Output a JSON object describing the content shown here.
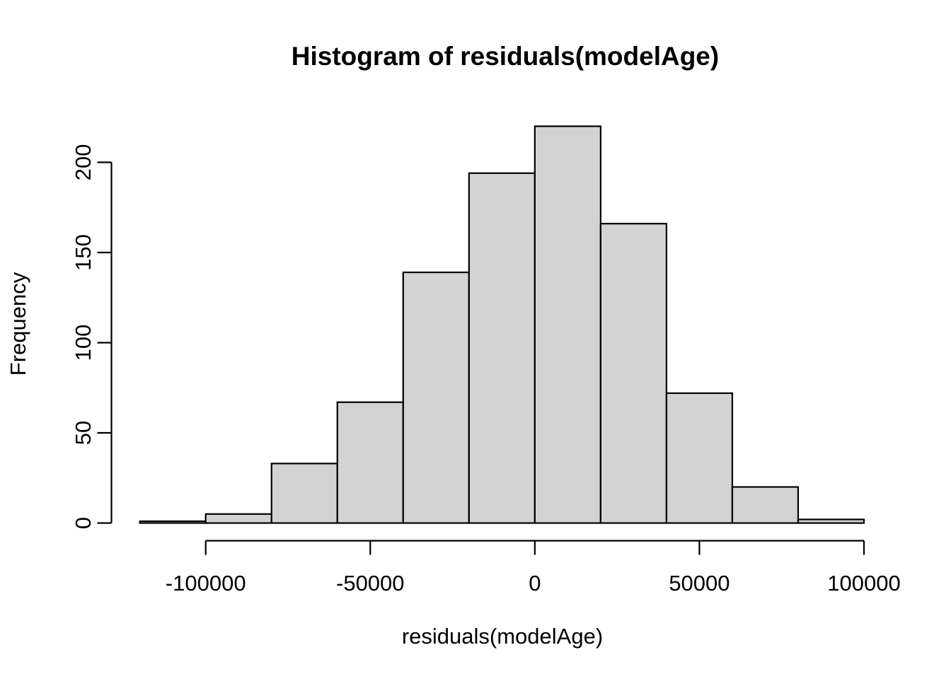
{
  "chart_data": {
    "type": "histogram",
    "title": "Histogram of residuals(modelAge)",
    "xlabel": "residuals(modelAge)",
    "ylabel": "Frequency",
    "bin_width": 20000,
    "bins": [
      {
        "start": -120000,
        "end": -100000,
        "count": 1
      },
      {
        "start": -100000,
        "end": -80000,
        "count": 5
      },
      {
        "start": -80000,
        "end": -60000,
        "count": 33
      },
      {
        "start": -60000,
        "end": -40000,
        "count": 67
      },
      {
        "start": -40000,
        "end": -20000,
        "count": 139
      },
      {
        "start": -20000,
        "end": 0,
        "count": 194
      },
      {
        "start": 0,
        "end": 20000,
        "count": 220
      },
      {
        "start": 20000,
        "end": 40000,
        "count": 166
      },
      {
        "start": 40000,
        "end": 60000,
        "count": 72
      },
      {
        "start": 60000,
        "end": 80000,
        "count": 20
      },
      {
        "start": 80000,
        "end": 100000,
        "count": 2
      }
    ],
    "x_ticks": [
      -100000,
      -50000,
      0,
      50000,
      100000
    ],
    "x_tick_labels": [
      "-100000",
      "-50000",
      "0",
      "50000",
      "100000"
    ],
    "y_ticks": [
      0,
      50,
      100,
      150,
      200
    ],
    "y_tick_labels": [
      "0",
      "50",
      "100",
      "150",
      "200"
    ],
    "xlim": [
      -120000,
      100000
    ],
    "ylim": [
      0,
      200
    ],
    "grid": false,
    "colors": {
      "bar_fill": "#d3d3d3",
      "bar_stroke": "#000000",
      "axis": "#000000",
      "text": "#000000",
      "background": "#ffffff"
    }
  }
}
